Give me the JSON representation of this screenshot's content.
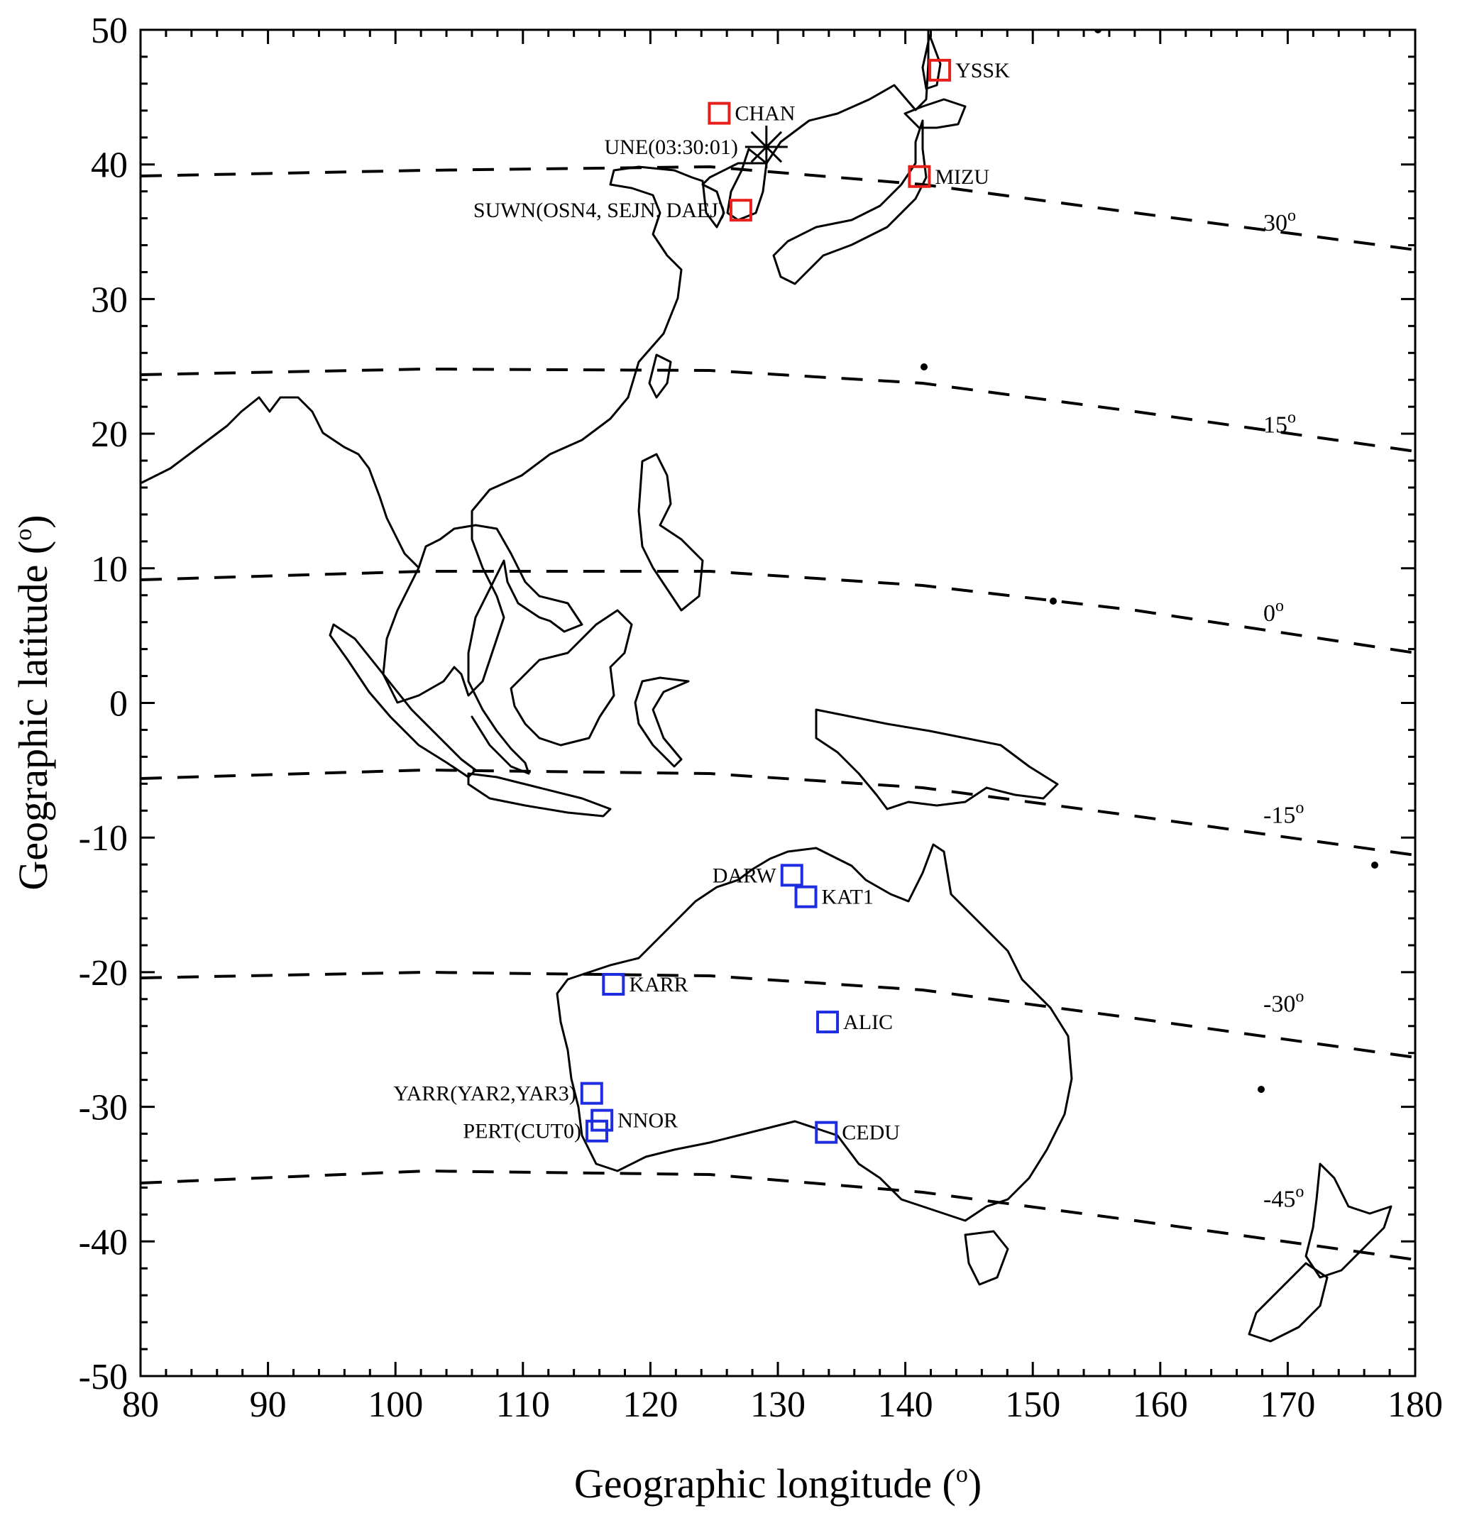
{
  "map": {
    "xlabel": "Geographic longitude (",
    "xlabel_degree": "o",
    "xlabel_close": ")",
    "ylabel": "Geographic latitude (",
    "ylabel_degree": "o",
    "ylabel_close": ")",
    "xlim": [
      80,
      180
    ],
    "ylim": [
      -50,
      50
    ],
    "x_ticks": [
      "80",
      "90",
      "100",
      "110",
      "120",
      "130",
      "140",
      "150",
      "160",
      "170",
      "180"
    ],
    "y_ticks": [
      "50",
      "40",
      "30",
      "20",
      "10",
      "0",
      "-10",
      "-20",
      "-30",
      "-40",
      "-50"
    ],
    "epicenter": {
      "label": "UNE(03:30:01)",
      "lon": 129.1,
      "lat": 41.3,
      "color": "#000000",
      "icon": "asterisk"
    },
    "stations": [
      {
        "label": "YSSK",
        "lon": 142.7,
        "lat": 47.0,
        "color": "#e8201c"
      },
      {
        "label": "CHAN",
        "lon": 125.4,
        "lat": 43.8,
        "color": "#e8201c"
      },
      {
        "label": "MIZU",
        "lon": 141.1,
        "lat": 39.1,
        "color": "#e8201c"
      },
      {
        "label": "SUWN(OSN4, SEJN, DAEJ)",
        "lon": 127.1,
        "lat": 36.6,
        "color": "#e8201c"
      },
      {
        "label": "DARW",
        "lon": 131.1,
        "lat": -12.8,
        "color": "#1f2de0"
      },
      {
        "label": "KAT1",
        "lon": 132.2,
        "lat": -14.4,
        "color": "#1f2de0"
      },
      {
        "label": "KARR",
        "lon": 117.1,
        "lat": -20.9,
        "color": "#1f2de0"
      },
      {
        "label": "ALIC",
        "lon": 133.9,
        "lat": -23.7,
        "color": "#1f2de0"
      },
      {
        "label": "YARR(YAR2,YAR3)",
        "lon": 115.4,
        "lat": -29.0,
        "color": "#1f2de0"
      },
      {
        "label": "NNOR",
        "lon": 116.2,
        "lat": -31.0,
        "color": "#1f2de0"
      },
      {
        "label": "PERT(CUT0)",
        "lon": 115.8,
        "lat": -31.8,
        "color": "#1f2de0"
      },
      {
        "label": "CEDU",
        "lon": 133.8,
        "lat": -31.9,
        "color": "#1f2de0"
      }
    ],
    "dip_latitude_labels": [
      {
        "text": "30",
        "lat_at_right": 35.5
      },
      {
        "text": "15",
        "lat_at_right": 20.5
      },
      {
        "text": "0",
        "lat_at_right": 6.5
      },
      {
        "text": "-15",
        "lat_at_right": -8.5
      },
      {
        "text": "-30",
        "lat_at_right": -22.5
      },
      {
        "text": "-45",
        "lat_at_right": -37.0
      }
    ],
    "degree_mark": "o",
    "colors": {
      "northern_stations": "#e8201c",
      "southern_stations": "#1f2de0",
      "coastline": "#000000"
    }
  }
}
